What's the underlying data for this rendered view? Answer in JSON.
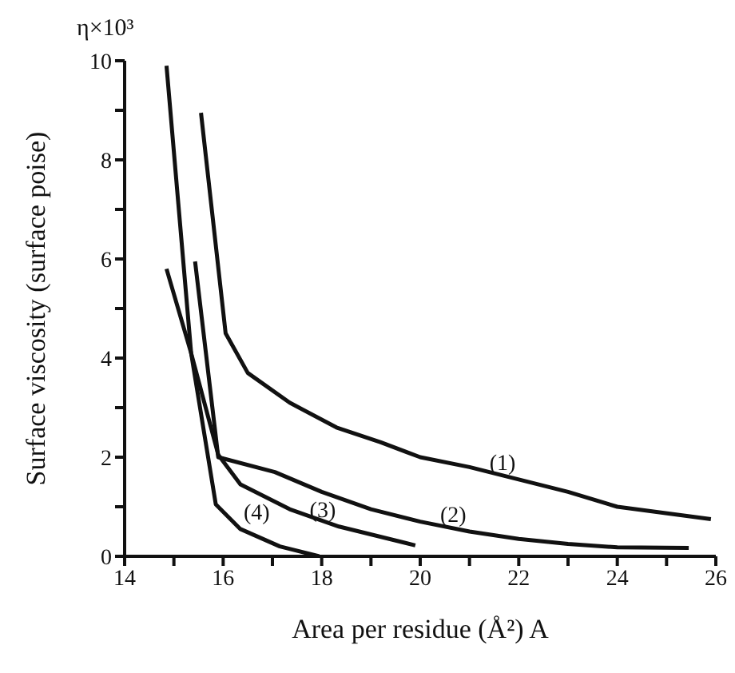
{
  "chart_data": {
    "type": "line",
    "xlabel": "Area per residue (Å²) A",
    "ylabel": "Surface viscosity (surface poise)",
    "annotations": [
      "η×10³"
    ],
    "series": [
      {
        "name": "(1)",
        "color": "#111111",
        "x": [
          15.55,
          16.05,
          16.5,
          17.35,
          18.3,
          19.2,
          20,
          21,
          22,
          23,
          24,
          25.9
        ],
        "values": [
          8.95,
          4.5,
          3.7,
          3.1,
          2.6,
          2.3,
          2.0,
          1.8,
          1.55,
          1.3,
          1.0,
          0.75
        ]
      },
      {
        "name": "(2)",
        "color": "#111111",
        "x": [
          15.43,
          15.9,
          17.05,
          18,
          19,
          20,
          21,
          22,
          23,
          24,
          25.45
        ],
        "values": [
          5.95,
          2.0,
          1.7,
          1.3,
          0.95,
          0.7,
          0.5,
          0.35,
          0.25,
          0.18,
          0.17
        ]
      },
      {
        "name": "(3)",
        "color": "#111111",
        "x": [
          14.85,
          15.35,
          15.9,
          16.35,
          17.35,
          18.35,
          19.9
        ],
        "values": [
          5.8,
          4.1,
          2.05,
          1.45,
          0.95,
          0.6,
          0.22
        ]
      },
      {
        "name": "(4)",
        "color": "#111111",
        "x": [
          14.85,
          15.35,
          15.85,
          16.35,
          17.15,
          17.95
        ],
        "values": [
          9.9,
          4.1,
          1.05,
          0.55,
          0.2,
          0
        ]
      }
    ],
    "xlim": [
      14,
      26
    ],
    "ylim": [
      0,
      10
    ],
    "xticks": [
      14,
      {
        "value": 15,
        "label": null
      },
      16,
      {
        "value": 17,
        "label": null
      },
      18,
      {
        "value": 19,
        "label": null
      },
      20,
      {
        "value": 21,
        "label": null
      },
      22,
      {
        "value": 23,
        "label": null
      },
      24,
      {
        "value": 25,
        "label": null
      },
      26
    ],
    "yticks": [
      0,
      {
        "value": 1,
        "label": null
      },
      2,
      {
        "value": 3,
        "label": null
      },
      4,
      {
        "value": 5,
        "label": null
      },
      6,
      {
        "value": 7,
        "label": null
      },
      8,
      {
        "value": 9,
        "label": null
      },
      10
    ],
    "grid": false,
    "legend": false,
    "marker": "none",
    "line_style": "solid"
  }
}
